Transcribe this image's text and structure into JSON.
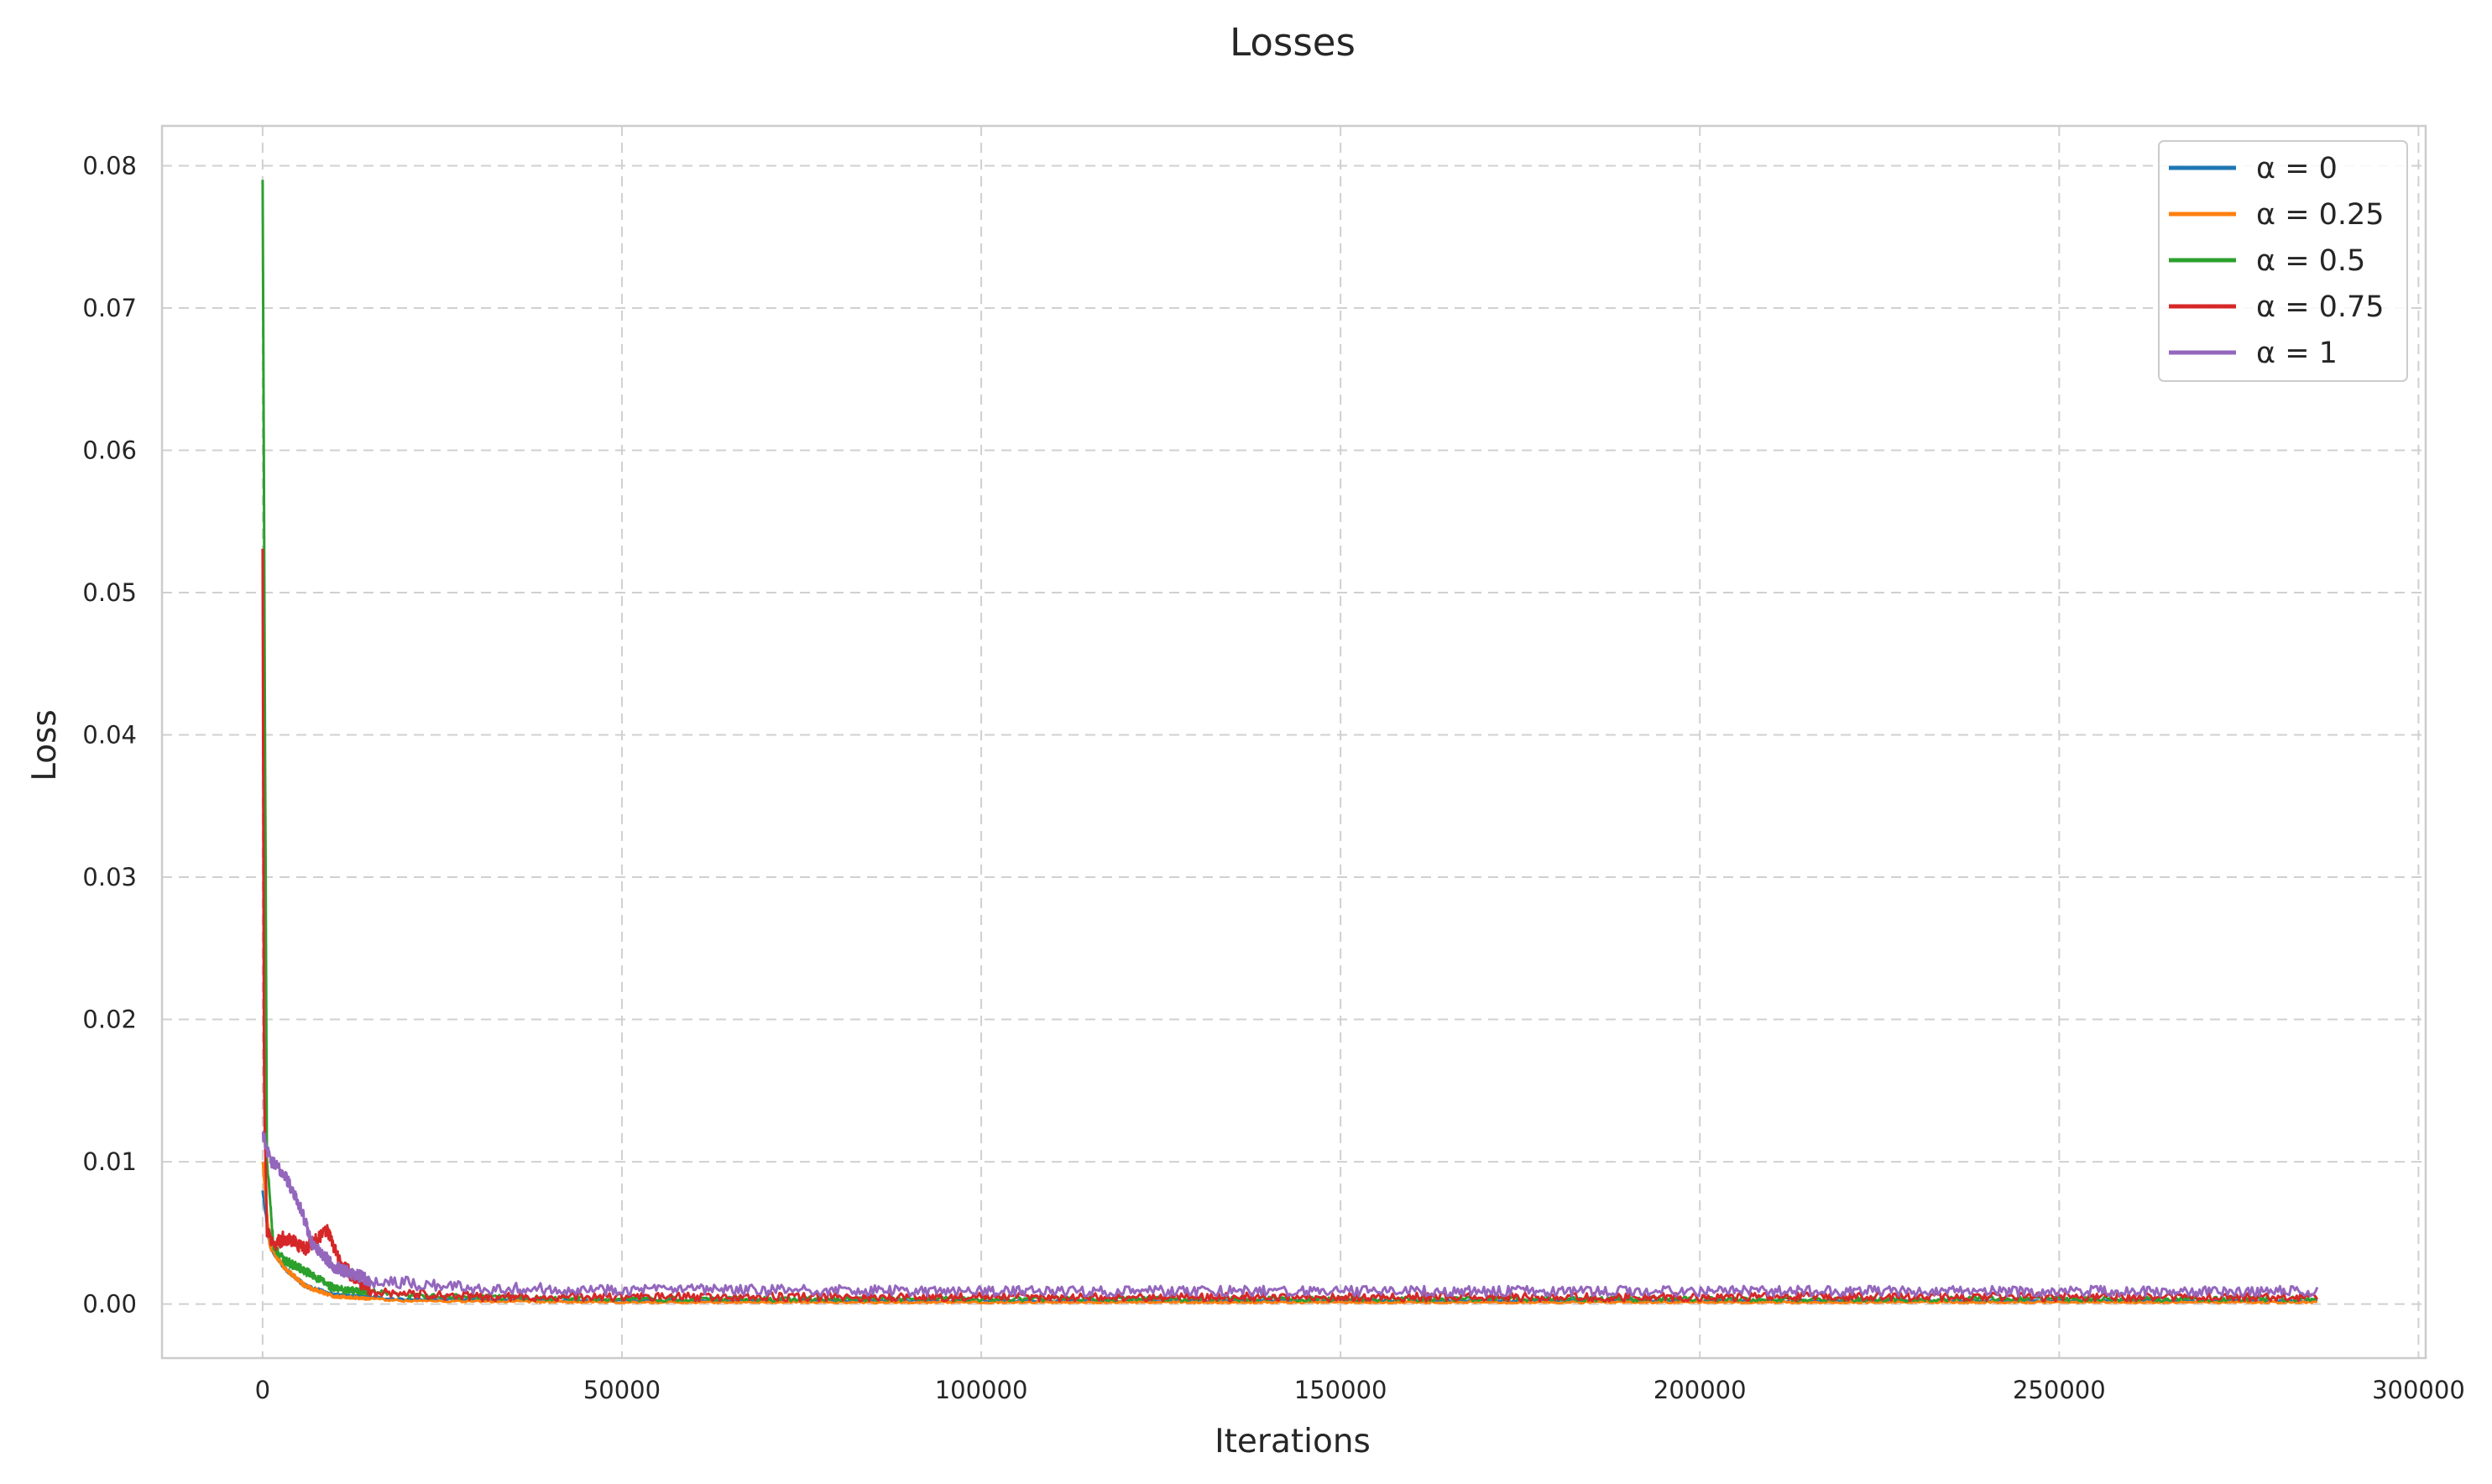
{
  "chart_data": {
    "type": "line",
    "title": "Losses",
    "xlabel": "Iterations",
    "ylabel": "Loss",
    "xlim": [
      -14000,
      301000
    ],
    "ylim": [
      -0.0038,
      0.0828
    ],
    "x_ticks": [
      0,
      50000,
      100000,
      150000,
      200000,
      250000,
      300000
    ],
    "x_tick_labels": [
      "0",
      "50000",
      "100000",
      "150000",
      "200000",
      "250000",
      "300000"
    ],
    "y_ticks": [
      0.0,
      0.01,
      0.02,
      0.03,
      0.04,
      0.05,
      0.06,
      0.07,
      0.08
    ],
    "y_tick_labels": [
      "0.00",
      "0.01",
      "0.02",
      "0.03",
      "0.04",
      "0.05",
      "0.06",
      "0.07",
      "0.08"
    ],
    "grid": true,
    "legend_position": "top-right",
    "series": [
      {
        "name": "α = 0",
        "color": "#1f77b4",
        "x": [
          0,
          1000,
          3000,
          6000,
          10000,
          20000,
          50000,
          100000,
          150000,
          200000,
          250000,
          286000
        ],
        "y": [
          0.008,
          0.004,
          0.0025,
          0.0012,
          0.0006,
          0.0003,
          0.0002,
          0.0002,
          0.0002,
          0.0002,
          0.0002,
          0.0002
        ],
        "noise": 0.0003
      },
      {
        "name": "α = 0.25",
        "color": "#ff7f0e",
        "x": [
          0,
          1000,
          3000,
          6000,
          10000,
          20000,
          50000,
          100000,
          150000,
          200000,
          250000,
          286000
        ],
        "y": [
          0.01,
          0.004,
          0.0025,
          0.0012,
          0.0005,
          0.0002,
          0.0001,
          0.0001,
          0.0001,
          0.0001,
          0.0001,
          0.0001
        ],
        "noise": 0.0003
      },
      {
        "name": "α = 0.5",
        "color": "#2ca02c",
        "x": [
          0,
          200,
          600,
          1500,
          3000,
          6000,
          10000,
          20000,
          50000,
          100000,
          150000,
          200000,
          250000,
          286000
        ],
        "y": [
          0.079,
          0.056,
          0.01,
          0.004,
          0.003,
          0.0022,
          0.001,
          0.0005,
          0.0003,
          0.0003,
          0.0003,
          0.0003,
          0.0003,
          0.0003
        ],
        "noise": 0.0006
      },
      {
        "name": "α = 0.75",
        "color": "#d62728",
        "x": [
          0,
          200,
          600,
          1500,
          3000,
          6000,
          9000,
          11000,
          15000,
          30000,
          100000,
          150000,
          200000,
          250000,
          286000
        ],
        "y": [
          0.053,
          0.015,
          0.005,
          0.004,
          0.0045,
          0.0038,
          0.005,
          0.0025,
          0.0008,
          0.0004,
          0.0004,
          0.0004,
          0.0004,
          0.0004,
          0.0004
        ],
        "noise": 0.001
      },
      {
        "name": "α = 1",
        "color": "#9467bd",
        "x": [
          0,
          1000,
          3000,
          5000,
          7000,
          10000,
          15000,
          30000,
          50000,
          100000,
          150000,
          200000,
          250000,
          286000
        ],
        "y": [
          0.012,
          0.01,
          0.009,
          0.007,
          0.004,
          0.0025,
          0.0015,
          0.001,
          0.0009,
          0.0008,
          0.0008,
          0.0008,
          0.0008,
          0.0008
        ],
        "noise": 0.0009
      }
    ]
  }
}
